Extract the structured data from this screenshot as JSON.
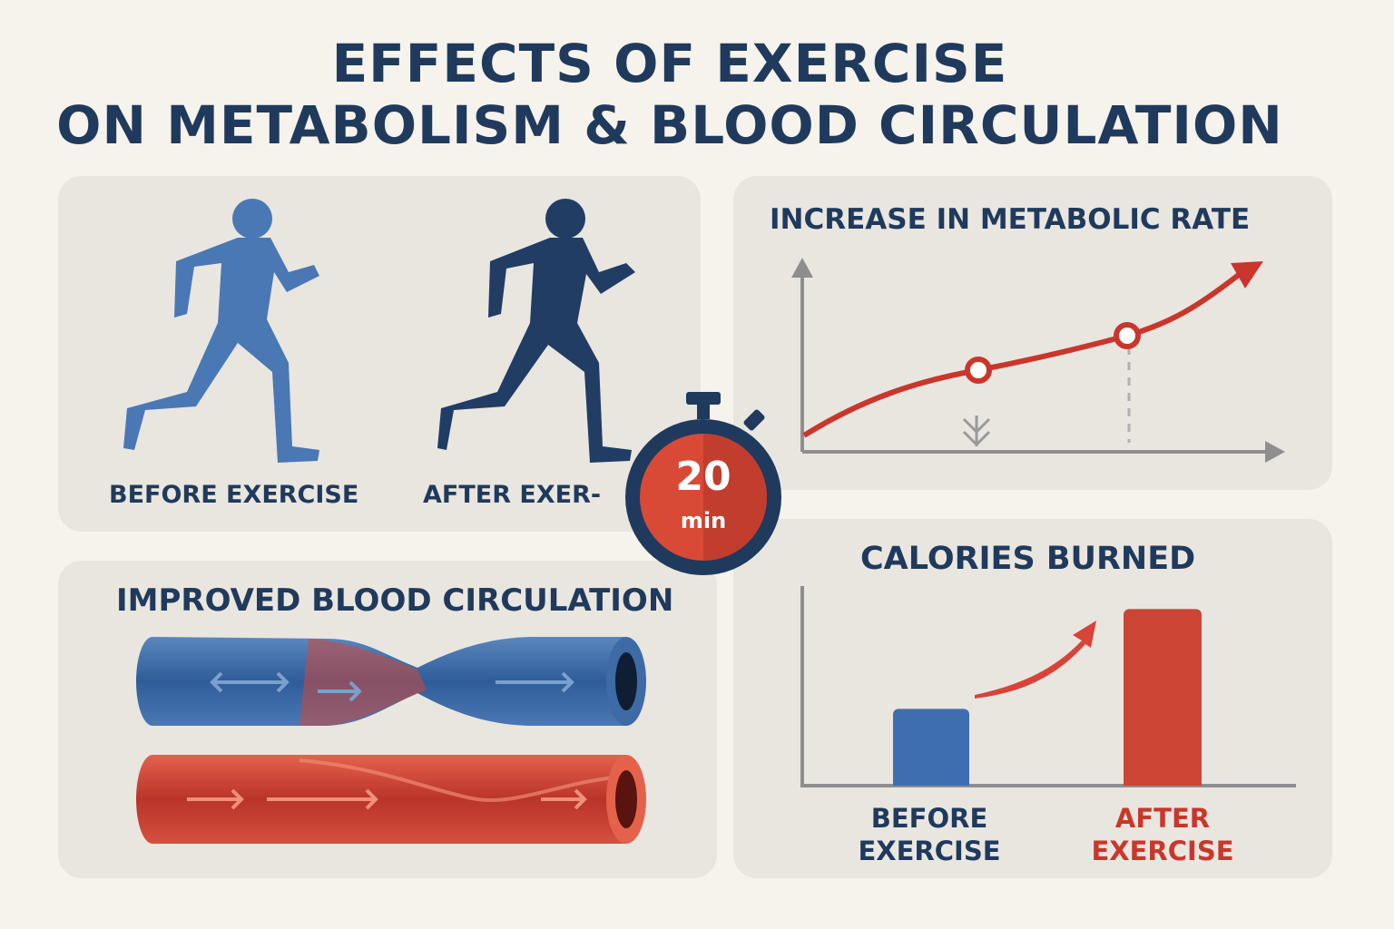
{
  "header": {
    "title_line1": "EFFECTS OF EXERCISE",
    "title_line2": "ON METABOLISM & BLOOD CIRCULATION"
  },
  "runners": {
    "before_label": "BEFORE EXERCISE",
    "after_label": "AFTER EXER-"
  },
  "timer": {
    "value": "20",
    "unit": "min"
  },
  "metabolic": {
    "title": "INCREASE IN METABOLIC RATE"
  },
  "blood": {
    "title": "IMPROVED BLOOD CIRCULATION"
  },
  "chart_data": {
    "type": "bar",
    "title": "CALORIES BURNED",
    "categories": [
      "BEFORE EXERCISE",
      "AFTER EXERCISE"
    ],
    "category_lines": [
      [
        "BEFORE",
        "EXERCISE"
      ],
      [
        "AFTER",
        "EXERCISE"
      ]
    ],
    "values": [
      1,
      2.3
    ],
    "colors": [
      "#3e6eb0",
      "#cc4535"
    ],
    "xlabel": "",
    "ylabel": "",
    "ylim": [
      0,
      2.6
    ]
  },
  "colors": {
    "navy": "#1f3a5c",
    "blue": "#4a7bb8",
    "red": "#c9372c",
    "panel": "#e9e6e0"
  }
}
